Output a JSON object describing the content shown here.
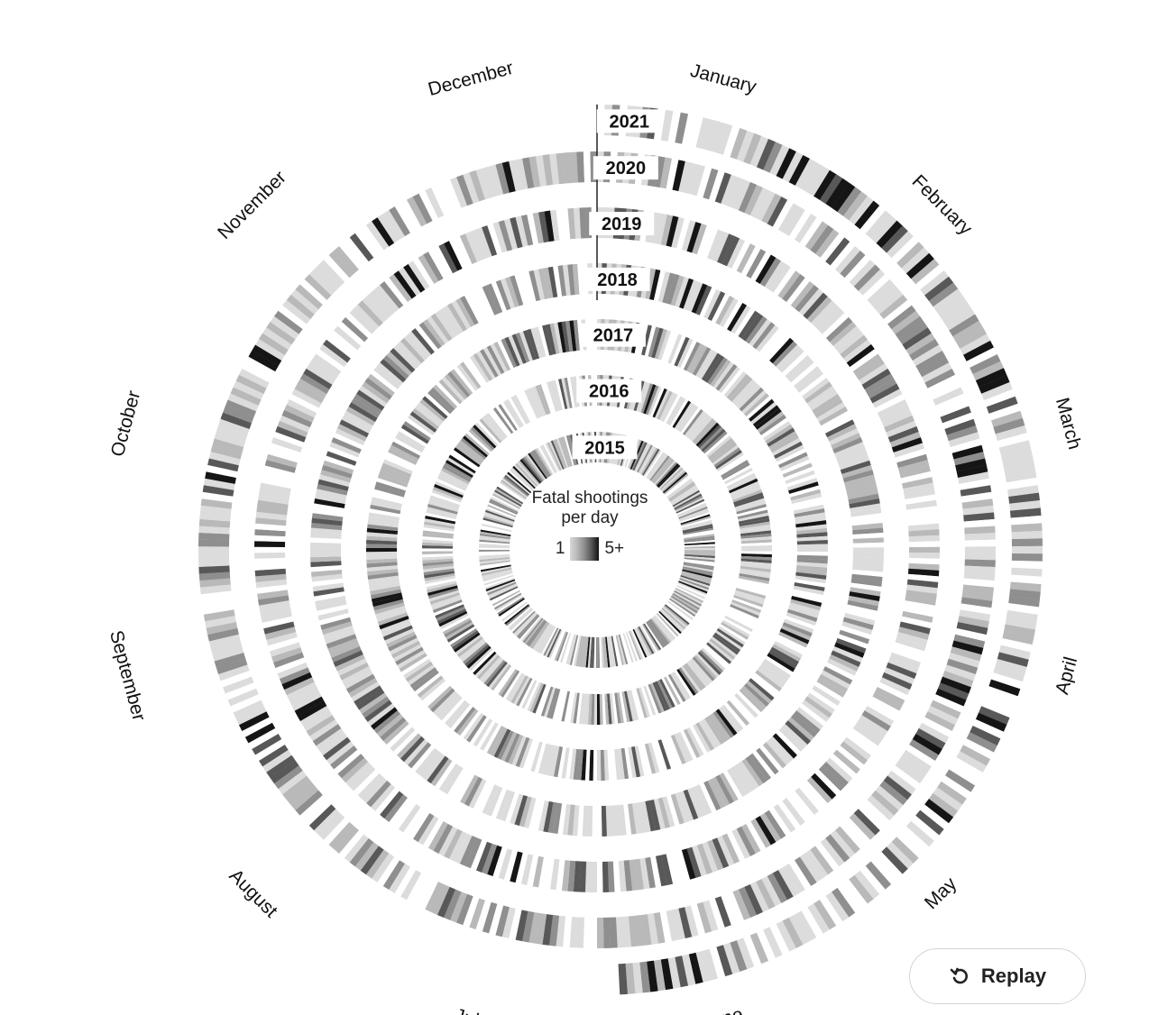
{
  "chart_data": {
    "type": "radial-heatmap",
    "legend": {
      "title_line1": "Fatal shootings",
      "title_line2": "per day",
      "min_label": "1",
      "max_label": "5+"
    },
    "years": [
      "2015",
      "2016",
      "2017",
      "2018",
      "2019",
      "2020",
      "2021"
    ],
    "months": [
      "January",
      "February",
      "March",
      "April",
      "May",
      "June",
      "July",
      "August",
      "September",
      "October",
      "November",
      "December"
    ],
    "scale_min": 1,
    "scale_max": 5,
    "palette": [
      "#ffffff",
      "#dcdcdc",
      "#b9b9b9",
      "#8f8f8f",
      "#585858",
      "#151515"
    ]
  },
  "controls": {
    "replay_label": "Replay"
  }
}
